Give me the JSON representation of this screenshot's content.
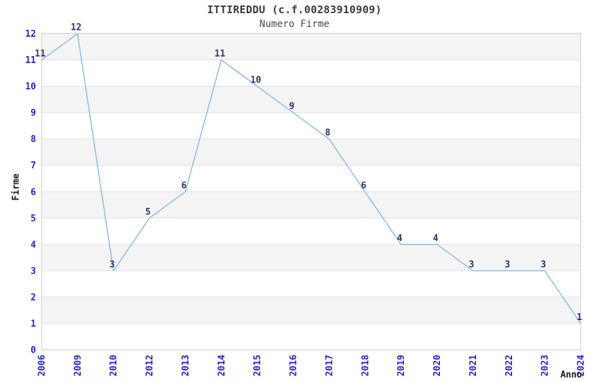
{
  "chart": {
    "title": "ITTIREDDU (c.f.00283910909)",
    "subtitle": "Numero Firme"
  },
  "chart_data": {
    "type": "line",
    "title": "ITTIREDDU (c.f.00283910909)",
    "subtitle": "Numero Firme",
    "categories": [
      "2006",
      "2009",
      "2010",
      "2012",
      "2013",
      "2014",
      "2015",
      "2016",
      "2017",
      "2018",
      "2019",
      "2020",
      "2021",
      "2022",
      "2023",
      "2024"
    ],
    "values": [
      11,
      12,
      3,
      5,
      6,
      11,
      10,
      9,
      8,
      6,
      4,
      4,
      3,
      3,
      3,
      1
    ],
    "xlabel": "Anno",
    "ylabel": "Firme",
    "ylim": [
      0,
      12
    ],
    "ytick_step": 1,
    "grid": "horizontal-lines-with-alternating-bands",
    "legend_position": "none",
    "data_labels": true,
    "colors": {
      "line": "#7fb2e5",
      "tick_label": "#2323cc",
      "data_label": "#333366",
      "band_fill": "#f4f4f4",
      "grid_line": "#e0e0e0",
      "plot_border": "#c9c9c9",
      "title_text": "#3a3a3a",
      "axis_title_text": "#1a1a1a"
    }
  }
}
